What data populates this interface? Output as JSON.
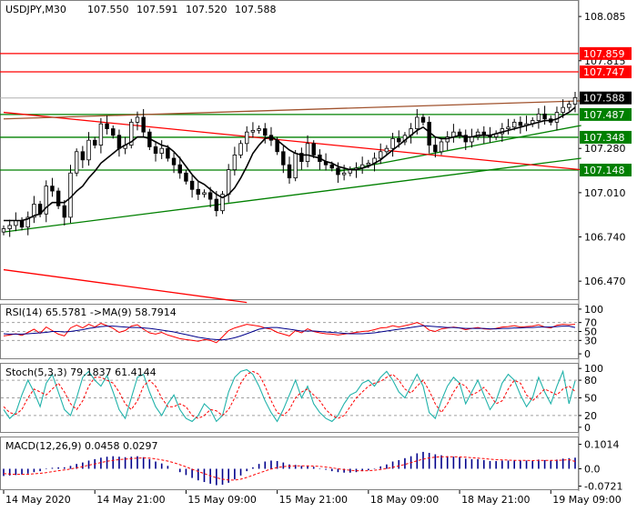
{
  "chart_data": {
    "type": "candlestick",
    "header": {
      "symbol": "USDJPY,M30",
      "ohlc": [
        "107.550",
        "107.591",
        "107.520",
        "107.588"
      ]
    },
    "price_axis": {
      "ylim": [
        106.36,
        108.18
      ],
      "ticks": [
        "108.085",
        "107.815",
        "107.280",
        "107.010",
        "106.740",
        "106.470"
      ],
      "tick_values": [
        108.085,
        107.815,
        107.28,
        107.01,
        106.74,
        106.47
      ]
    },
    "levels": [
      {
        "value": 107.859,
        "label": "107.859",
        "color": "#ff0000"
      },
      {
        "value": 107.747,
        "label": "107.747",
        "color": "#ff0000"
      },
      {
        "value": 107.487,
        "label": "107.487",
        "color": "#008000"
      },
      {
        "value": 107.348,
        "label": "107.348",
        "color": "#008000"
      },
      {
        "value": 107.148,
        "label": "107.148",
        "color": "#008000"
      }
    ],
    "current_price": {
      "value": 107.588,
      "label": "107.588"
    },
    "close_series": [
      106.79,
      106.81,
      106.84,
      106.8,
      106.86,
      106.94,
      106.88,
      107.05,
      107.02,
      106.93,
      106.86,
      107.13,
      107.26,
      107.21,
      107.33,
      107.3,
      107.43,
      107.4,
      107.36,
      107.28,
      107.3,
      107.44,
      107.47,
      107.38,
      107.29,
      107.25,
      107.28,
      107.22,
      107.18,
      107.13,
      107.08,
      107.03,
      107.0,
      107.01,
      106.97,
      106.9,
      107.0,
      107.15,
      107.24,
      107.31,
      107.38,
      107.39,
      107.4,
      107.36,
      107.33,
      107.26,
      107.18,
      107.1,
      107.25,
      107.2,
      107.31,
      107.24,
      107.2,
      107.18,
      107.16,
      107.12,
      107.13,
      107.15,
      107.16,
      107.18,
      107.19,
      107.22,
      107.26,
      107.28,
      107.34,
      107.32,
      107.36,
      107.4,
      107.47,
      107.44,
      107.3,
      107.26,
      107.32,
      107.35,
      107.38,
      107.36,
      107.32,
      107.35,
      107.38,
      107.36,
      107.35,
      107.37,
      107.4,
      107.41,
      107.44,
      107.42,
      107.43,
      107.45,
      107.49,
      107.46,
      107.44,
      107.5,
      107.53,
      107.55,
      107.59
    ],
    "ma_series": [
      106.84,
      106.84,
      106.84,
      106.84,
      106.85,
      106.87,
      106.88,
      106.92,
      106.95,
      106.95,
      106.95,
      106.98,
      107.02,
      107.05,
      107.1,
      107.14,
      107.19,
      107.22,
      107.25,
      107.28,
      107.3,
      107.32,
      107.35,
      107.35,
      107.34,
      107.32,
      107.3,
      107.29,
      107.26,
      107.22,
      107.17,
      107.12,
      107.08,
      107.06,
      107.03,
      107.0,
      106.98,
      107.0,
      107.04,
      107.1,
      107.17,
      107.25,
      107.3,
      107.34,
      107.35,
      107.33,
      107.3,
      107.27,
      107.25,
      107.24,
      107.24,
      107.23,
      107.22,
      107.2,
      107.19,
      107.17,
      107.16,
      107.15,
      107.15,
      107.16,
      107.17,
      107.19,
      107.21,
      107.24,
      107.27,
      107.3,
      107.33,
      107.36,
      107.39,
      107.41,
      107.38,
      107.35,
      107.34,
      107.34,
      107.35,
      107.36,
      107.35,
      107.35,
      107.36,
      107.36,
      107.36,
      107.37,
      107.38,
      107.39,
      107.4,
      107.41,
      107.42,
      107.43,
      107.44,
      107.45,
      107.45,
      107.46,
      107.48,
      107.5,
      107.53
    ],
    "trendlines": [
      {
        "color": "#008000",
        "from": [
          0,
          106.77
        ],
        "to": [
          95,
          107.22
        ]
      },
      {
        "color": "#008000",
        "from": [
          55,
          107.14
        ],
        "to": [
          95,
          107.42
        ]
      },
      {
        "color": "#ff0000",
        "from": [
          0,
          107.5
        ],
        "to": [
          95,
          107.15
        ]
      },
      {
        "color": "#ff0000",
        "from": [
          0,
          106.54
        ],
        "to": [
          40,
          106.34
        ]
      },
      {
        "color": "#a0522d",
        "from": [
          0,
          107.46
        ],
        "to": [
          95,
          107.57
        ]
      }
    ],
    "x_labels": [
      "14 May 2020",
      "14 May 21:00",
      "15 May 09:00",
      "15 May 21:00",
      "18 May 09:00",
      "18 May 21:00",
      "19 May 09:00"
    ],
    "x_label_index": [
      0,
      15,
      30,
      45,
      60,
      75,
      90
    ],
    "rsi": {
      "header": "RSI(14) 65.5781 ->MA(9) 58.7914",
      "ticks": [
        "100",
        "70",
        "50",
        "30",
        "0"
      ],
      "tick_values": [
        100,
        70,
        50,
        30,
        0
      ],
      "ylim": [
        -10,
        110
      ],
      "levels": [
        70,
        50,
        30
      ],
      "values": [
        40,
        42,
        45,
        41,
        48,
        55,
        46,
        60,
        52,
        44,
        40,
        58,
        64,
        58,
        66,
        60,
        68,
        63,
        57,
        48,
        52,
        62,
        65,
        55,
        47,
        44,
        48,
        42,
        38,
        34,
        32,
        30,
        28,
        32,
        30,
        25,
        38,
        52,
        58,
        62,
        66,
        64,
        62,
        58,
        55,
        48,
        44,
        40,
        52,
        47,
        56,
        50,
        47,
        45,
        44,
        42,
        44,
        46,
        48,
        50,
        51,
        54,
        58,
        59,
        63,
        60,
        63,
        66,
        70,
        64,
        53,
        50,
        56,
        58,
        60,
        58,
        54,
        57,
        59,
        56,
        55,
        57,
        60,
        61,
        63,
        60,
        61,
        62,
        65,
        60,
        58,
        64,
        66,
        65,
        66
      ],
      "ma": [
        45,
        44,
        44,
        44,
        45,
        46,
        47,
        48,
        50,
        50,
        49,
        50,
        52,
        54,
        57,
        59,
        61,
        62,
        62,
        61,
        60,
        59,
        59,
        58,
        57,
        55,
        53,
        51,
        49,
        46,
        43,
        40,
        37,
        35,
        33,
        32,
        31,
        33,
        36,
        40,
        45,
        50,
        55,
        58,
        59,
        59,
        57,
        55,
        53,
        51,
        51,
        51,
        50,
        49,
        48,
        47,
        46,
        45,
        45,
        45,
        46,
        47,
        49,
        51,
        53,
        55,
        57,
        59,
        61,
        63,
        62,
        61,
        60,
        59,
        59,
        58,
        57,
        57,
        57,
        57,
        56,
        56,
        57,
        57,
        58,
        58,
        59,
        59,
        60,
        60,
        60,
        61,
        62,
        62,
        59
      ]
    },
    "stoch": {
      "header": "Stoch(5,3,3) 79.1837 61.4144",
      "ticks": [
        "100",
        "80",
        "50",
        "20",
        "0"
      ],
      "tick_values": [
        100,
        80,
        50,
        20,
        0
      ],
      "ylim": [
        -8,
        108
      ],
      "levels": [
        80,
        50,
        20
      ],
      "k": [
        30,
        15,
        25,
        55,
        80,
        60,
        35,
        75,
        90,
        60,
        30,
        20,
        50,
        85,
        95,
        80,
        70,
        88,
        60,
        30,
        15,
        50,
        85,
        90,
        60,
        35,
        20,
        40,
        55,
        30,
        15,
        10,
        20,
        40,
        30,
        10,
        20,
        60,
        85,
        95,
        98,
        90,
        70,
        45,
        25,
        10,
        30,
        55,
        80,
        50,
        70,
        40,
        25,
        15,
        10,
        20,
        40,
        55,
        60,
        75,
        80,
        70,
        85,
        95,
        80,
        60,
        50,
        70,
        90,
        70,
        25,
        15,
        45,
        70,
        85,
        75,
        40,
        60,
        80,
        55,
        30,
        45,
        75,
        90,
        80,
        55,
        35,
        50,
        85,
        60,
        40,
        70,
        95,
        40,
        79
      ],
      "d": [
        35,
        25,
        22,
        30,
        50,
        65,
        60,
        55,
        65,
        75,
        60,
        40,
        30,
        45,
        70,
        85,
        85,
        80,
        75,
        60,
        40,
        30,
        45,
        70,
        80,
        70,
        50,
        35,
        35,
        40,
        35,
        20,
        15,
        20,
        30,
        28,
        20,
        30,
        50,
        75,
        90,
        95,
        90,
        70,
        45,
        25,
        20,
        30,
        50,
        60,
        65,
        55,
        45,
        30,
        20,
        15,
        20,
        35,
        50,
        60,
        70,
        75,
        78,
        85,
        90,
        80,
        65,
        58,
        70,
        80,
        62,
        40,
        25,
        40,
        60,
        75,
        70,
        55,
        60,
        68,
        55,
        40,
        45,
        65,
        80,
        75,
        55,
        45,
        55,
        65,
        60,
        55,
        65,
        70,
        61
      ]
    },
    "macd": {
      "header": "MACD(12,26,9) 0.0458 0.0297",
      "ticks": [
        "0.1014",
        "0.0",
        "-0.0721"
      ],
      "tick_values": [
        0.1014,
        0.0,
        -0.0721
      ],
      "ylim": [
        -0.085,
        0.13
      ],
      "hist": [
        -0.03,
        -0.028,
        -0.026,
        -0.024,
        -0.02,
        -0.014,
        -0.01,
        -0.002,
        0.004,
        0.006,
        0.006,
        0.012,
        0.02,
        0.026,
        0.034,
        0.04,
        0.046,
        0.05,
        0.052,
        0.05,
        0.048,
        0.05,
        0.052,
        0.048,
        0.04,
        0.03,
        0.022,
        0.012,
        0.0,
        -0.014,
        -0.026,
        -0.038,
        -0.048,
        -0.055,
        -0.062,
        -0.068,
        -0.066,
        -0.058,
        -0.044,
        -0.028,
        -0.01,
        0.006,
        0.02,
        0.03,
        0.034,
        0.032,
        0.026,
        0.018,
        0.016,
        0.012,
        0.012,
        0.008,
        0.002,
        -0.004,
        -0.01,
        -0.014,
        -0.016,
        -0.016,
        -0.014,
        -0.01,
        -0.006,
        0.002,
        0.01,
        0.018,
        0.03,
        0.036,
        0.044,
        0.052,
        0.064,
        0.07,
        0.066,
        0.06,
        0.056,
        0.052,
        0.05,
        0.048,
        0.042,
        0.04,
        0.04,
        0.036,
        0.032,
        0.032,
        0.034,
        0.034,
        0.036,
        0.034,
        0.034,
        0.034,
        0.038,
        0.036,
        0.034,
        0.038,
        0.042,
        0.044,
        0.046
      ],
      "signal": [
        -0.02,
        -0.022,
        -0.023,
        -0.023,
        -0.023,
        -0.021,
        -0.019,
        -0.016,
        -0.012,
        -0.008,
        -0.005,
        -0.001,
        0.004,
        0.009,
        0.015,
        0.02,
        0.026,
        0.031,
        0.035,
        0.038,
        0.04,
        0.042,
        0.044,
        0.045,
        0.044,
        0.041,
        0.037,
        0.032,
        0.025,
        0.017,
        0.008,
        -0.002,
        -0.011,
        -0.02,
        -0.029,
        -0.037,
        -0.043,
        -0.047,
        -0.047,
        -0.043,
        -0.036,
        -0.027,
        -0.018,
        -0.009,
        -0.001,
        0.005,
        0.009,
        0.011,
        0.012,
        0.012,
        0.012,
        0.011,
        0.01,
        0.007,
        0.004,
        0.0,
        -0.003,
        -0.006,
        -0.008,
        -0.008,
        -0.008,
        -0.006,
        -0.003,
        0.001,
        0.006,
        0.012,
        0.018,
        0.025,
        0.033,
        0.04,
        0.045,
        0.048,
        0.05,
        0.05,
        0.05,
        0.049,
        0.048,
        0.046,
        0.044,
        0.042,
        0.04,
        0.038,
        0.037,
        0.036,
        0.035,
        0.035,
        0.035,
        0.034,
        0.035,
        0.035,
        0.035,
        0.035,
        0.036,
        0.038,
        0.03
      ]
    }
  }
}
